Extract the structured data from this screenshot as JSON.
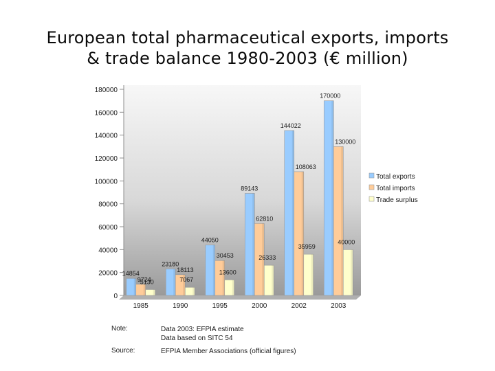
{
  "title_line1": "European total pharmaceutical exports, imports",
  "title_line2": "& trade balance 1980-2003 (€ million)",
  "notes": {
    "note_label": "Note:",
    "note_line1": "Data 2003: EFPIA estimate",
    "note_line2": "Data based on SITC 54",
    "source_label": "Source:",
    "source_text": "EFPIA Member Associations (official figures)"
  },
  "chart_data": {
    "type": "bar",
    "title": "European total pharmaceutical exports, imports & trade balance 1980-2003 (€ million)",
    "categories": [
      "1985",
      "1990",
      "1995",
      "2000",
      "2002",
      "2003"
    ],
    "series": [
      {
        "name": "Total exports",
        "color": "#99ccff",
        "values": [
          14854,
          23180,
          44050,
          89143,
          144022,
          170000
        ]
      },
      {
        "name": "Total imports",
        "color": "#ffcc99",
        "values": [
          9724,
          18113,
          30453,
          62810,
          108063,
          130000
        ]
      },
      {
        "name": "Trade surplus",
        "color": "#ffffcc",
        "values": [
          5130,
          7067,
          13600,
          26333,
          35959,
          40000
        ]
      }
    ],
    "yticks": [
      "0",
      "20000",
      "40000",
      "60000",
      "80000",
      "100000",
      "120000",
      "140000",
      "160000",
      "180000"
    ],
    "ylim": [
      0,
      180000
    ],
    "xlabel": "",
    "ylabel": "",
    "grid": false,
    "legend": "right"
  }
}
